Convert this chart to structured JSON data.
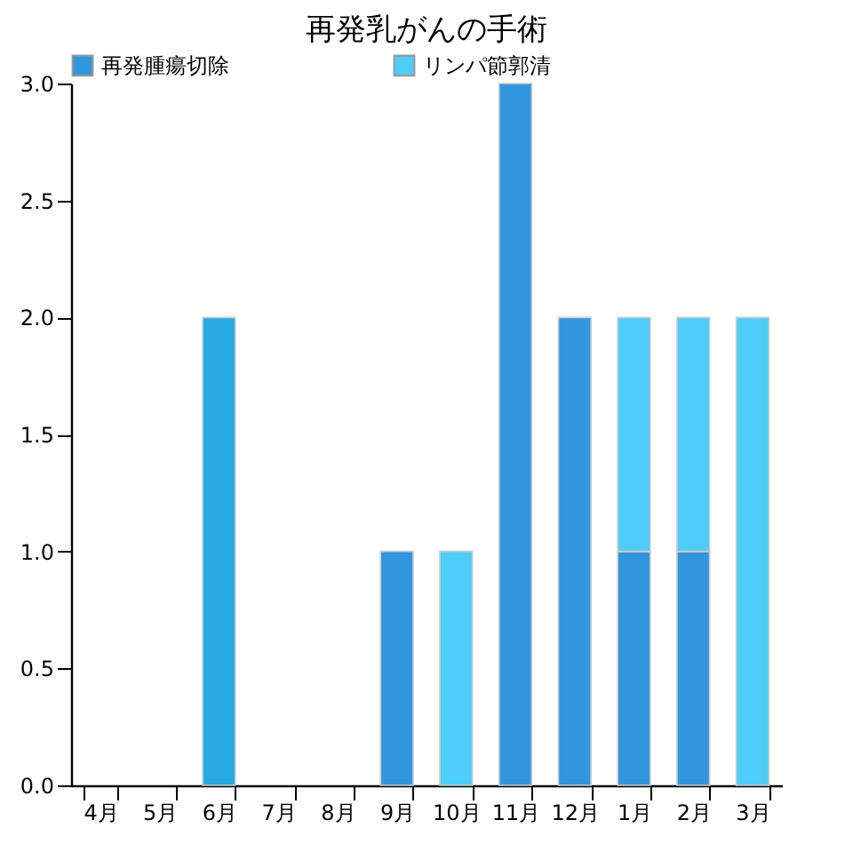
{
  "chart_data": {
    "type": "bar",
    "title": "再発乳がんの手術",
    "stacked": true,
    "legend": "top",
    "categories": [
      "4月",
      "5月",
      "6月",
      "7月",
      "8月",
      "9月",
      "10月",
      "11月",
      "12月",
      "1月",
      "2月",
      "3月"
    ],
    "series": [
      {
        "name": "再発腫瘍切除",
        "color": "#3296de",
        "values": [
          null,
          null,
          null,
          null,
          null,
          1,
          null,
          3,
          2,
          1,
          1,
          null
        ]
      },
      {
        "name": "リンパ節郭清",
        "color": "#4dcdf8",
        "values": [
          null,
          null,
          null,
          null,
          null,
          null,
          1,
          null,
          null,
          1,
          1,
          2
        ]
      },
      {
        "color": "#29a9e1",
        "values": [
          null,
          null,
          2,
          null,
          null,
          null,
          null,
          null,
          null,
          null,
          null,
          null
        ]
      }
    ],
    "ylim": [
      0,
      3
    ],
    "yticks": [
      {
        "value": 0,
        "label": "0.0"
      },
      {
        "value": 0.5,
        "label": "0.5"
      },
      {
        "value": 1,
        "label": "1.0"
      },
      {
        "value": 1.5,
        "label": "1.5"
      },
      {
        "value": 2,
        "label": "2.0"
      },
      {
        "value": 2.5,
        "label": "2.5"
      },
      {
        "value": 3,
        "label": "3.0"
      }
    ],
    "grid": false
  }
}
